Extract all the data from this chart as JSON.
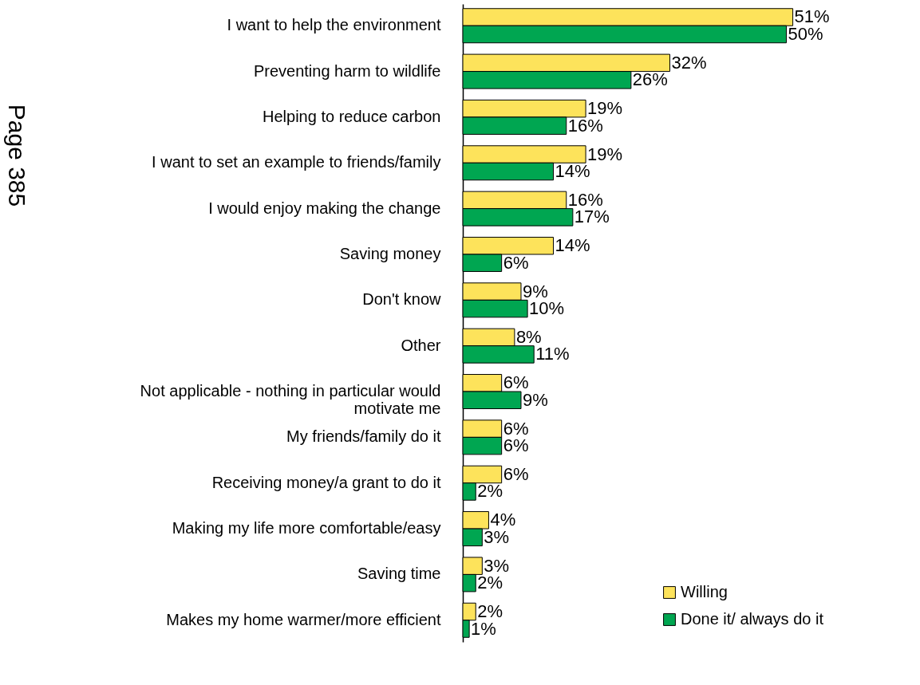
{
  "chart_data": {
    "type": "bar",
    "orientation": "horizontal",
    "categories": [
      "I want to help the environment",
      "Preventing harm to wildlife",
      "Helping to reduce carbon",
      "I want to set an example to friends/family",
      "I would enjoy making the change",
      "Saving money",
      "Don't know",
      "Other",
      "Not applicable - nothing in particular would motivate me",
      "My friends/family do it",
      "Receiving money/a grant to do it",
      "Making my life more comfortable/easy",
      "Saving time",
      "Makes my home warmer/more efficient"
    ],
    "series": [
      {
        "name": "Willing",
        "color": "#fde35b",
        "values": [
          51,
          32,
          19,
          19,
          16,
          14,
          9,
          8,
          6,
          6,
          6,
          4,
          3,
          2
        ],
        "value_labels": [
          "51%",
          "32%",
          "19%",
          "19%",
          "16%",
          "14%",
          "9%",
          "8%",
          "6%",
          "6%",
          "6%",
          "4%",
          "3%",
          "2%"
        ]
      },
      {
        "name": "Done it/ always do it",
        "color": "#00a651",
        "values": [
          50,
          26,
          16,
          14,
          17,
          6,
          10,
          11,
          9,
          6,
          2,
          3,
          2,
          1
        ],
        "value_labels": [
          "50%",
          "26%",
          "16%",
          "14%",
          "17%",
          "6%",
          "10%",
          "11%",
          "9%",
          "6%",
          "2%",
          "3%",
          "2%",
          "1%"
        ]
      }
    ],
    "tick_labels": "y",
    "legend": "bottom right",
    "annotations": [
      "Page 385"
    ]
  }
}
